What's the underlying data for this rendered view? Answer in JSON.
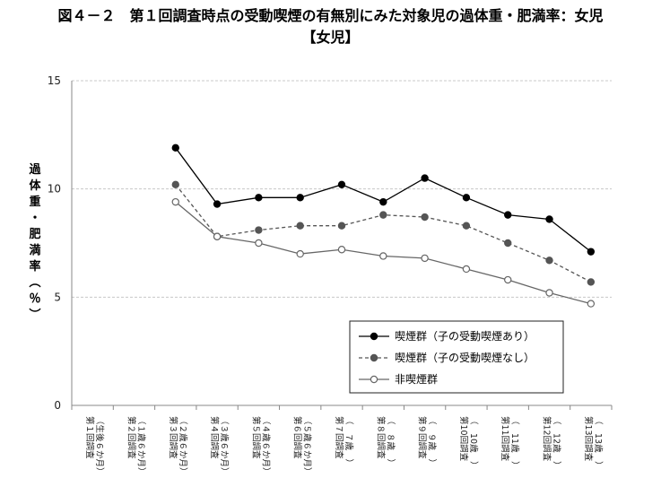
{
  "title": "図４－２　第１回調査時点の受動喫煙の有無別にみた対象児の過体重・肥満率：女児",
  "subtitle": "【女児】",
  "chart_data": {
    "type": "line",
    "ylabel": "過体重・肥満率（％）",
    "xlabel": "",
    "ylim": [
      0,
      15
    ],
    "yticks": [
      0,
      5,
      10,
      15
    ],
    "grid": true,
    "legend_position": "center-right",
    "categories": [
      [
        "第１回調査",
        "（生後６か月）"
      ],
      [
        "第２回調査",
        "（１歳６か月）"
      ],
      [
        "第３回調査",
        "（２歳６か月）"
      ],
      [
        "第４回調査",
        "（３歳６か月）"
      ],
      [
        "第５回調査",
        "（４歳６か月）"
      ],
      [
        "第６回調査",
        "（５歳６か月）"
      ],
      [
        "第７回調査",
        "（　７歳　）"
      ],
      [
        "第８回調査",
        "（　８歳　）"
      ],
      [
        "第９回調査",
        "（　９歳　）"
      ],
      [
        "第10回調査",
        "（　10歳　）"
      ],
      [
        "第11回調査",
        "（　11歳　）"
      ],
      [
        "第12回調査",
        "（　12歳　）"
      ],
      [
        "第13回調査",
        "（　13歳　）"
      ]
    ],
    "series": [
      {
        "name": "喫煙群（子の受動喫煙あり）",
        "style": "solid-filled",
        "color": "#000000",
        "values": [
          null,
          null,
          11.9,
          9.3,
          9.6,
          9.6,
          10.2,
          9.4,
          10.5,
          9.6,
          8.8,
          8.6,
          7.1
        ]
      },
      {
        "name": "喫煙群（子の受動喫煙なし）",
        "style": "dashed-gray",
        "color": "#555555",
        "values": [
          null,
          null,
          10.2,
          7.8,
          8.1,
          8.3,
          8.3,
          8.8,
          8.7,
          8.3,
          7.5,
          6.7,
          5.7
        ]
      },
      {
        "name": "非喫煙群",
        "style": "solid-open",
        "color": "#666666",
        "values": [
          null,
          null,
          9.4,
          7.8,
          7.5,
          7.0,
          7.2,
          6.9,
          6.8,
          6.3,
          5.8,
          5.2,
          4.7
        ]
      }
    ]
  }
}
